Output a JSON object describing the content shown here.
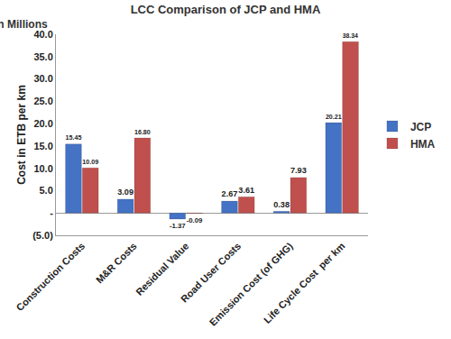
{
  "chart_data": {
    "type": "bar",
    "title": "LCC Comparison of JCP and HMA",
    "y_label": "Cost in ETB per km",
    "annotations": [
      "In Millions"
    ],
    "categories": [
      "Construction Costs",
      "M&R Costs",
      "Residual Value",
      "Road User Costs",
      "Emission Cost (of GHG)",
      "Life Cycle Cost  per km"
    ],
    "series": [
      {
        "name": "JCP",
        "color": "#4472c4",
        "values": [
          15.45,
          3.09,
          -1.37,
          2.67,
          0.38,
          20.21
        ],
        "value_labels": [
          "15.45",
          "3.09",
          "-1.37",
          "2.67",
          "0.38",
          "20.21"
        ]
      },
      {
        "name": "HMA",
        "color": "#c0504d",
        "values": [
          10.09,
          16.8,
          -0.09,
          3.61,
          7.93,
          38.34
        ],
        "value_labels": [
          "10.09",
          "16.80",
          "-0.09",
          "3.61",
          "7.93",
          "38.34"
        ]
      }
    ],
    "ylim": [
      -5,
      40
    ],
    "yticks": [
      {
        "value": -5,
        "label": "(5.0)"
      },
      {
        "value": 0,
        "label": "-"
      },
      {
        "value": 5,
        "label": "5.0"
      },
      {
        "value": 10,
        "label": "10.0"
      },
      {
        "value": 15,
        "label": "15.0"
      },
      {
        "value": 20,
        "label": "20.0"
      },
      {
        "value": 25,
        "label": "25.0"
      },
      {
        "value": 30,
        "label": "30.0"
      },
      {
        "value": 35,
        "label": "35.0"
      },
      {
        "value": 40,
        "label": "40.0"
      }
    ],
    "grid": false,
    "legend": "right",
    "data_labels": true
  }
}
